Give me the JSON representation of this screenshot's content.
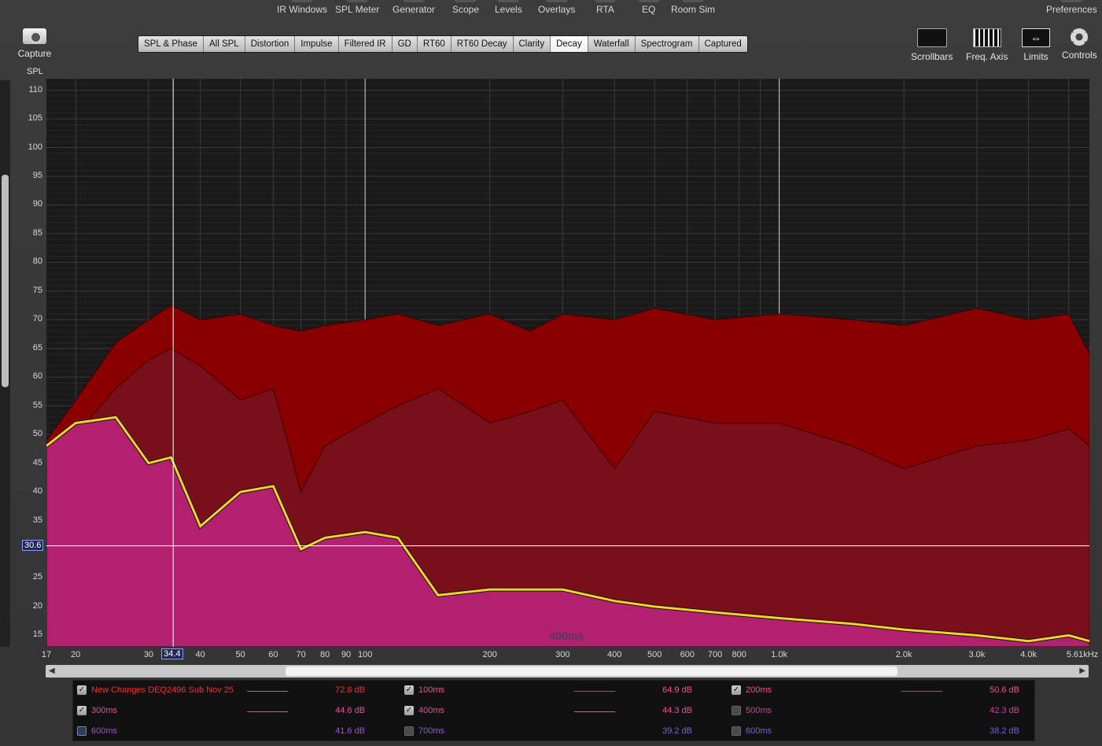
{
  "menu": [
    "IR Windows",
    "SPL Meter",
    "Generator",
    "Scope",
    "Levels",
    "Overlays",
    "RTA",
    "EQ",
    "Room Sim",
    "Preferences"
  ],
  "capture_label": "Capture",
  "tabs": [
    "SPL & Phase",
    "All SPL",
    "Distortion",
    "Impulse",
    "Filtered IR",
    "GD",
    "RT60",
    "RT60 Decay",
    "Clarity",
    "Decay",
    "Waterfall",
    "Spectrogram",
    "Captured"
  ],
  "active_tab": "Decay",
  "tools": {
    "scrollbars": "Scrollbars",
    "freq_axis": "Freq. Axis",
    "limits": "Limits",
    "controls": "Controls"
  },
  "spl_label": "SPL",
  "y_ticks": [
    "110",
    "105",
    "100",
    "95",
    "90",
    "85",
    "80",
    "75",
    "70",
    "65",
    "60",
    "55",
    "50",
    "45",
    "40",
    "35",
    "30",
    "25",
    "20",
    "15"
  ],
  "x_ticks": [
    "17",
    "20",
    "30",
    "34.4",
    "40",
    "50",
    "60",
    "70",
    "80",
    "90",
    "100",
    "200",
    "300",
    "400",
    "500",
    "600",
    "700",
    "800",
    "1.0k",
    "2.0k",
    "3.0k",
    "4.0k",
    "5.61kHz"
  ],
  "cursor": {
    "freq": "34.4",
    "spl": "30.6"
  },
  "decay_time_label": "400ms",
  "chart_data": {
    "type": "area",
    "xscale": "log",
    "xlim": [
      17,
      5610
    ],
    "ylim": [
      13,
      112
    ],
    "xlabel": "",
    "ylabel": "SPL",
    "series": [
      {
        "name": "New Changes DEQ2496 Sub Nov 25",
        "color": "#8a0000",
        "x": [
          17,
          20,
          25,
          30,
          34,
          40,
          50,
          60,
          70,
          80,
          100,
          120,
          150,
          200,
          250,
          300,
          400,
          500,
          700,
          1000,
          1500,
          2000,
          3000,
          4000,
          5000,
          5610
        ],
        "y": [
          49,
          56,
          66,
          70,
          72.5,
          70,
          71,
          69,
          68,
          69,
          70,
          71,
          69,
          71,
          68,
          71,
          70,
          72,
          70,
          71,
          70,
          69,
          72,
          70,
          71,
          64
        ]
      },
      {
        "name": "200ms",
        "color": "#7a0f1c",
        "x": [
          17,
          20,
          25,
          30,
          34,
          40,
          50,
          60,
          70,
          80,
          100,
          120,
          150,
          200,
          250,
          300,
          400,
          500,
          700,
          1000,
          1500,
          2000,
          3000,
          4000,
          5000,
          5610
        ],
        "y": [
          47,
          50,
          58,
          63,
          65,
          62,
          56,
          58,
          40,
          48,
          52,
          55,
          58,
          52,
          54,
          56,
          44,
          54,
          52,
          52,
          48,
          44,
          48,
          49,
          51,
          48
        ]
      },
      {
        "name": "400ms",
        "color": "#b4206f",
        "x": [
          17,
          20,
          25,
          30,
          34,
          40,
          50,
          60,
          70,
          80,
          100,
          120,
          150,
          200,
          250,
          300,
          400,
          500,
          700,
          1000,
          1500,
          2000,
          3000,
          4000,
          5000,
          5610
        ],
        "y": [
          48,
          52,
          53,
          45,
          46,
          34,
          40,
          41,
          30,
          32,
          33,
          32,
          22,
          23,
          23,
          23,
          21,
          20,
          19,
          18,
          17,
          16,
          15,
          14,
          15,
          14
        ]
      }
    ]
  },
  "legend": [
    {
      "name": "New Changes DEQ2496 Sub Nov 25",
      "value": "72.8 dB",
      "checked": true,
      "color": "#ff2a2a",
      "line": "#ff4a6a"
    },
    {
      "name": "100ms",
      "value": "64.9 dB",
      "checked": true,
      "color": "#ff4a80",
      "line": "#ff2a4a"
    },
    {
      "name": "200ms",
      "value": "50.6 dB",
      "checked": true,
      "color": "#ff4a80",
      "line": "#ff2a4a"
    },
    {
      "name": "300ms",
      "value": "44.6 dB",
      "checked": true,
      "color": "#e4509a",
      "line": "#ff4a80"
    },
    {
      "name": "400ms",
      "value": "44.3 dB",
      "checked": true,
      "color": "#e4509a",
      "line": "#ff4aa0"
    },
    {
      "name": "500ms",
      "value": "42.3 dB",
      "checked": false,
      "color": "#cf3fa0",
      "line": ""
    },
    {
      "name": "600ms",
      "value": "41.6 dB",
      "checked": false,
      "color": "#a050d0",
      "line": ""
    },
    {
      "name": "700ms",
      "value": "39.2 dB",
      "checked": false,
      "color": "#8a5ad8",
      "line": ""
    },
    {
      "name": "800ms",
      "value": "38.2 dB",
      "checked": false,
      "color": "#7a5ae0",
      "line": ""
    }
  ]
}
